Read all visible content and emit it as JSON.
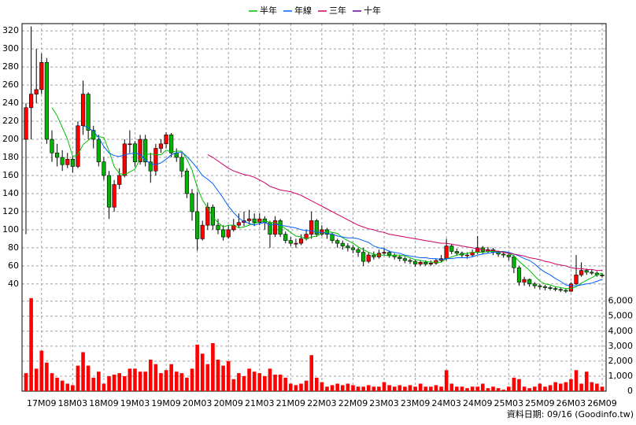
{
  "chart_data": {
    "type": "candlestick",
    "categories": [
      null,
      null,
      null,
      "17M09",
      null,
      null,
      null,
      null,
      null,
      "18M03",
      null,
      null,
      null,
      null,
      null,
      "18M09",
      null,
      null,
      null,
      null,
      null,
      "19M03",
      null,
      null,
      null,
      null,
      null,
      "19M09",
      null,
      null,
      null,
      null,
      null,
      "20M03",
      null,
      null,
      null,
      null,
      null,
      "20M09",
      null,
      null,
      null,
      null,
      null,
      "21M03",
      null,
      null,
      null,
      null,
      null,
      "21M09",
      null,
      null,
      null,
      null,
      null,
      "22M03",
      null,
      null,
      null,
      null,
      null,
      "22M09",
      null,
      null,
      null,
      null,
      null,
      "23M03",
      null,
      null,
      null,
      null,
      null,
      "23M09",
      null,
      null,
      null,
      null,
      null,
      "24M03",
      null,
      null,
      null,
      null,
      null,
      "24M09",
      null,
      null,
      null,
      null,
      null,
      "25M03",
      null,
      null,
      null,
      null,
      null,
      "25M09",
      null,
      null,
      null,
      null,
      null,
      "26M03",
      null,
      null,
      null,
      null,
      null,
      "26M09"
    ],
    "open": [
      200,
      235,
      250,
      255,
      285,
      200,
      185,
      180,
      172,
      178,
      170,
      215,
      250,
      210,
      200,
      175,
      160,
      125,
      150,
      160,
      195,
      195,
      175,
      200,
      175,
      165,
      190,
      195,
      205,
      185,
      180,
      165,
      140,
      120,
      90,
      105,
      125,
      105,
      100,
      92,
      100,
      105,
      108,
      110,
      112,
      108,
      112,
      108,
      95,
      110,
      95,
      88,
      85,
      85,
      90,
      95,
      110,
      95,
      100,
      95,
      88,
      85,
      82,
      80,
      78,
      75,
      65,
      72,
      70,
      74,
      75,
      72,
      70,
      68,
      66,
      65,
      62,
      64,
      62,
      63,
      66,
      68,
      82,
      76,
      74,
      72,
      72,
      75,
      80,
      76,
      78,
      75,
      73,
      72,
      70,
      58,
      42,
      45,
      40,
      38,
      37,
      36,
      35,
      34,
      33,
      32,
      40,
      50,
      55,
      53,
      52,
      50
    ],
    "high": [
      240,
      325,
      300,
      295,
      290,
      210,
      195,
      188,
      185,
      182,
      220,
      265,
      252,
      215,
      205,
      180,
      165,
      155,
      168,
      200,
      210,
      198,
      205,
      205,
      185,
      195,
      200,
      208,
      207,
      190,
      185,
      168,
      145,
      142,
      110,
      130,
      128,
      112,
      105,
      105,
      112,
      118,
      120,
      122,
      118,
      118,
      115,
      110,
      115,
      112,
      98,
      92,
      90,
      95,
      100,
      120,
      112,
      105,
      102,
      97,
      90,
      88,
      85,
      83,
      80,
      80,
      75,
      76,
      78,
      80,
      77,
      74,
      72,
      70,
      68,
      67,
      66,
      66,
      66,
      68,
      72,
      90,
      84,
      79,
      76,
      75,
      78,
      93,
      82,
      81,
      80,
      77,
      75,
      74,
      72,
      60,
      48,
      46,
      42,
      40,
      39,
      38,
      37,
      36,
      35,
      42,
      72,
      64,
      57,
      56,
      54,
      52
    ],
    "low": [
      95,
      200,
      240,
      250,
      195,
      175,
      170,
      165,
      168,
      163,
      168,
      205,
      200,
      190,
      170,
      155,
      112,
      120,
      145,
      158,
      185,
      170,
      172,
      170,
      152,
      160,
      185,
      190,
      180,
      175,
      158,
      135,
      110,
      77,
      88,
      100,
      100,
      95,
      88,
      90,
      98,
      102,
      104,
      106,
      104,
      105,
      100,
      80,
      92,
      92,
      85,
      82,
      80,
      83,
      88,
      90,
      92,
      93,
      90,
      85,
      80,
      78,
      76,
      74,
      70,
      60,
      63,
      67,
      68,
      72,
      69,
      67,
      65,
      63,
      62,
      59,
      60,
      60,
      60,
      61,
      64,
      66,
      73,
      71,
      69,
      68,
      70,
      73,
      73,
      74,
      72,
      70,
      69,
      66,
      52,
      38,
      38,
      37,
      35,
      34,
      33,
      33,
      32,
      31,
      30,
      31,
      39,
      48,
      50,
      50,
      48,
      47
    ],
    "close": [
      235,
      250,
      255,
      285,
      200,
      185,
      180,
      172,
      178,
      170,
      215,
      250,
      210,
      200,
      175,
      160,
      125,
      150,
      160,
      195,
      195,
      175,
      200,
      175,
      165,
      190,
      195,
      205,
      185,
      180,
      165,
      140,
      120,
      90,
      105,
      125,
      105,
      100,
      92,
      100,
      105,
      108,
      110,
      112,
      108,
      112,
      108,
      95,
      110,
      95,
      88,
      85,
      85,
      90,
      95,
      110,
      95,
      100,
      95,
      88,
      85,
      82,
      80,
      78,
      75,
      65,
      72,
      70,
      74,
      75,
      72,
      70,
      68,
      66,
      65,
      62,
      64,
      62,
      63,
      66,
      68,
      82,
      76,
      74,
      72,
      72,
      75,
      80,
      76,
      78,
      75,
      73,
      72,
      70,
      58,
      42,
      45,
      40,
      38,
      37,
      36,
      35,
      34,
      33,
      32,
      40,
      50,
      55,
      53,
      52,
      50,
      49
    ],
    "up_color": "#ff0000",
    "down_color": "#00b400",
    "series": [
      {
        "name": "半年",
        "color": "#00c000",
        "values": [
          null,
          null,
          null,
          null,
          null,
          235,
          226,
          213,
          200,
          181,
          183,
          194,
          199,
          204,
          203,
          202,
          187,
          170,
          162,
          161,
          164,
          167,
          179,
          183,
          184,
          183,
          183,
          188,
          186,
          187,
          187,
          178,
          166,
          147,
          133,
          124,
          114,
          108,
          103,
          105,
          105,
          102,
          103,
          105,
          107,
          109,
          110,
          108,
          108,
          105,
          101,
          97,
          93,
          92,
          90,
          92,
          93,
          96,
          98,
          97,
          96,
          91,
          88,
          85,
          81,
          78,
          75,
          73,
          72,
          72,
          71,
          72,
          72,
          71,
          69,
          67,
          66,
          65,
          64,
          64,
          64,
          68,
          70,
          72,
          73,
          74,
          75,
          75,
          75,
          76,
          76,
          76,
          76,
          74,
          71,
          65,
          60,
          55,
          49,
          43,
          40,
          39,
          37,
          36,
          35,
          35,
          37,
          41,
          44,
          47,
          50,
          52
        ]
      },
      {
        "name": "年線",
        "color": "#0060ff",
        "values": [
          null,
          null,
          null,
          null,
          null,
          null,
          null,
          null,
          null,
          null,
          null,
          215,
          213,
          209,
          202,
          192,
          185,
          182,
          181,
          183,
          184,
          185,
          183,
          177,
          173,
          172,
          174,
          178,
          183,
          185,
          186,
          181,
          175,
          168,
          160,
          156,
          151,
          143,
          135,
          126,
          119,
          113,
          109,
          107,
          105,
          107,
          108,
          105,
          106,
          105,
          104,
          103,
          102,
          100,
          99,
          99,
          97,
          97,
          96,
          95,
          93,
          92,
          91,
          91,
          90,
          88,
          86,
          82,
          80,
          79,
          76,
          75,
          74,
          72,
          71,
          70,
          69,
          69,
          68,
          68,
          67,
          68,
          68,
          69,
          69,
          69,
          70,
          72,
          73,
          74,
          75,
          75,
          76,
          75,
          73,
          71,
          68,
          66,
          62,
          57,
          53,
          50,
          46,
          43,
          39,
          38,
          38,
          39,
          40,
          41,
          43,
          45
        ]
      },
      {
        "name": "三年",
        "color": "#cc0066",
        "values": [
          null,
          null,
          null,
          null,
          null,
          null,
          null,
          null,
          null,
          null,
          null,
          null,
          null,
          null,
          null,
          null,
          null,
          null,
          null,
          null,
          null,
          null,
          null,
          null,
          null,
          null,
          null,
          null,
          null,
          null,
          null,
          null,
          null,
          null,
          null,
          183,
          180,
          176,
          172,
          168,
          165,
          163,
          161,
          160,
          158,
          155,
          152,
          148,
          146,
          144,
          143,
          142,
          140,
          138,
          135,
          132,
          129,
          126,
          123,
          120,
          117,
          114,
          111,
          108,
          105,
          103,
          101,
          100,
          98,
          97,
          95,
          94,
          93,
          92,
          91,
          90,
          89,
          88,
          87,
          86,
          85,
          85,
          84,
          83,
          82,
          81,
          80,
          79,
          78,
          77,
          77,
          76,
          75,
          74,
          73,
          72,
          71,
          69,
          68,
          67,
          65,
          64,
          62,
          61,
          60,
          58,
          57,
          57,
          56,
          56,
          55,
          55
        ]
      },
      {
        "name": "十年",
        "color": "#660099",
        "values": [
          null,
          null,
          null,
          null,
          null,
          null,
          null,
          null,
          null,
          null,
          null,
          null,
          null,
          null,
          null,
          null,
          null,
          null,
          null,
          null,
          null,
          null,
          null,
          null,
          null,
          null,
          null,
          null,
          null,
          null,
          null,
          null,
          null,
          null,
          null,
          null,
          null,
          null,
          null,
          null,
          null,
          null,
          null,
          null,
          null,
          null,
          null,
          null,
          null,
          null,
          null,
          null,
          null,
          null,
          null,
          null,
          null,
          null,
          null,
          null,
          null,
          null,
          null,
          null,
          null,
          null,
          null,
          null,
          null,
          null,
          null,
          null,
          null,
          null,
          null,
          null,
          null,
          null,
          null,
          null,
          null,
          null,
          null,
          null,
          null,
          null,
          null,
          null,
          null,
          null,
          null,
          null,
          null,
          null,
          null,
          null,
          null,
          null,
          null,
          null,
          null,
          null,
          null,
          null,
          null,
          null,
          null,
          null,
          null,
          null,
          null,
          null
        ]
      }
    ],
    "ylim": [
      32,
      328
    ],
    "yticks": [
      40,
      60,
      80,
      100,
      120,
      140,
      160,
      180,
      200,
      220,
      240,
      260,
      280,
      300,
      320
    ],
    "grid": true,
    "volume": {
      "color": "#ff0000",
      "values": [
        1200,
        6200,
        1500,
        2700,
        1900,
        1200,
        900,
        700,
        500,
        400,
        1700,
        2600,
        1700,
        900,
        1300,
        500,
        1000,
        1100,
        1200,
        1000,
        1500,
        1500,
        1300,
        1300,
        2100,
        1800,
        1200,
        1400,
        1800,
        1300,
        1200,
        900,
        1500,
        3100,
        2500,
        1800,
        3200,
        2100,
        1700,
        2000,
        800,
        1200,
        1000,
        1500,
        1300,
        1200,
        1000,
        1500,
        1100,
        1100,
        900,
        500,
        400,
        500,
        700,
        2400,
        900,
        600,
        300,
        400,
        500,
        400,
        500,
        400,
        300,
        300,
        400,
        300,
        300,
        600,
        400,
        300,
        400,
        300,
        400,
        300,
        500,
        300,
        300,
        400,
        300,
        1400,
        500,
        300,
        300,
        200,
        300,
        300,
        500,
        200,
        300,
        200,
        100,
        300,
        900,
        800,
        300,
        200,
        300,
        500,
        300,
        400,
        600,
        500,
        600,
        800,
        1400,
        500,
        1300,
        600,
        500,
        300
      ],
      "ylim": [
        0,
        6400
      ],
      "yticks": [
        0,
        {
          "value": 1000,
          "label": "1,000"
        },
        {
          "value": 2000,
          "label": "2,000"
        },
        {
          "value": 3000,
          "label": "3,000"
        },
        {
          "value": 4000,
          "label": "4,000"
        },
        {
          "value": 5000,
          "label": "5,000"
        },
        {
          "value": 6000,
          "label": "6,000"
        }
      ]
    },
    "note": "資料日期: 09/16 (Goodinfo.tw)"
  }
}
